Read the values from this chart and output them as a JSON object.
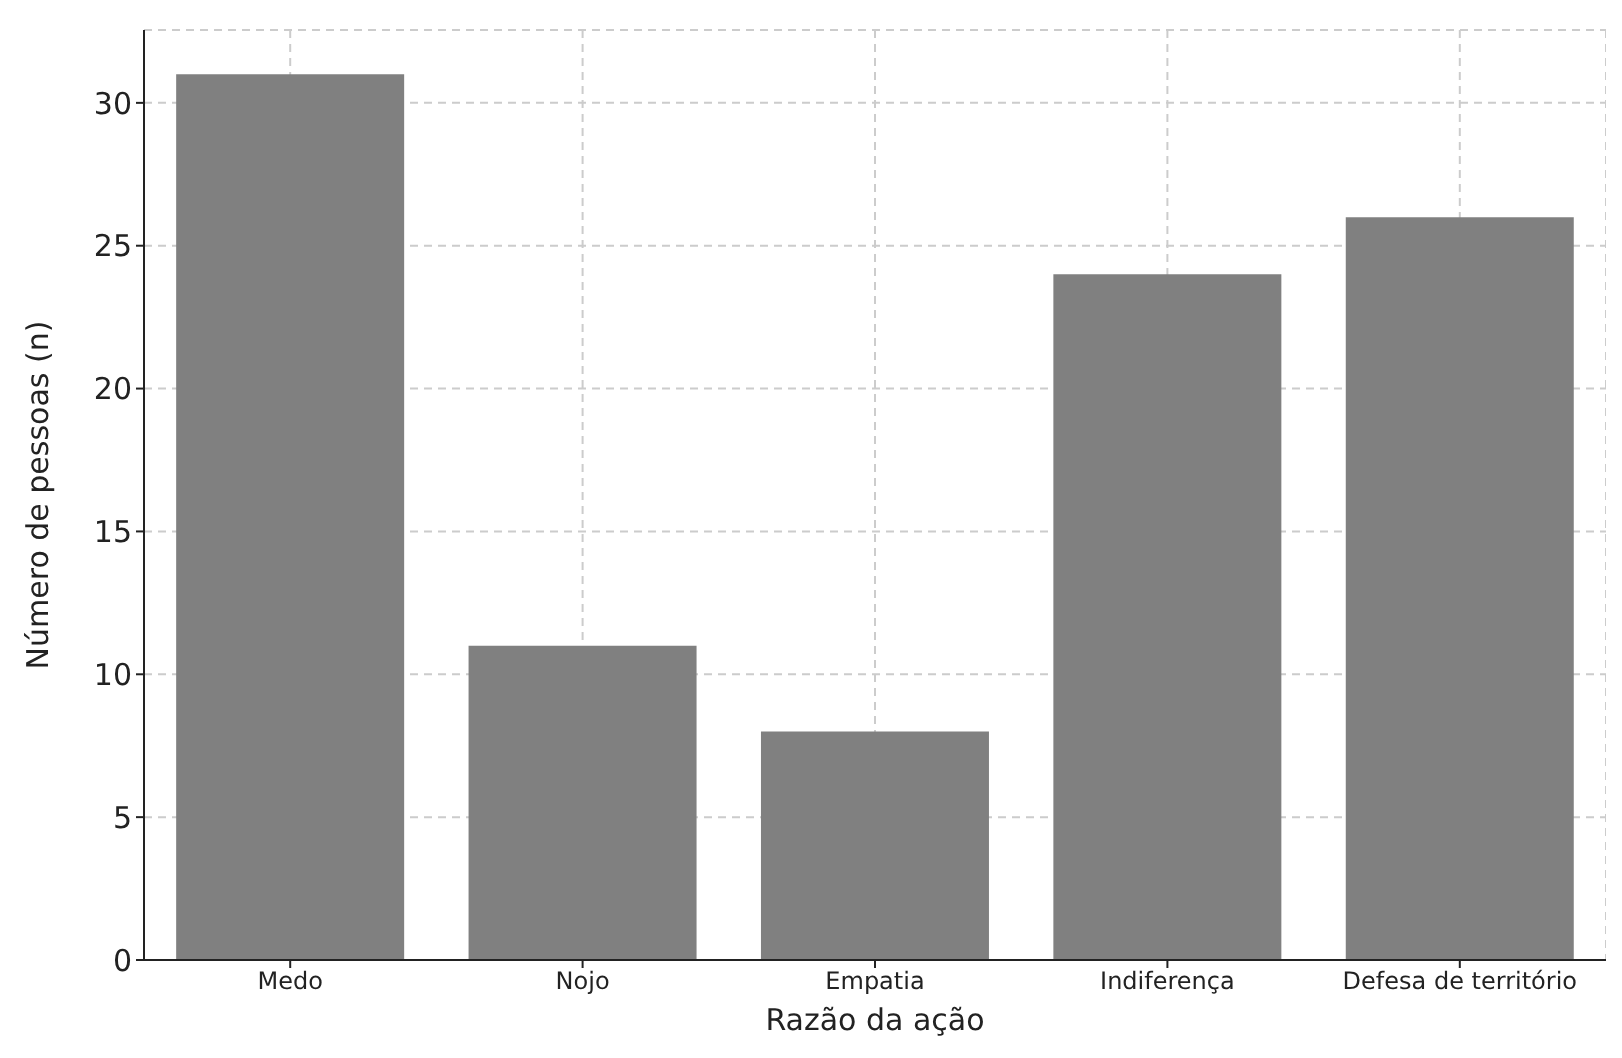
{
  "chart_data": {
    "type": "bar",
    "xlabel": "Razão da ação",
    "ylabel": "Número de pessoas (n)",
    "categories": [
      "Medo",
      "Nojo",
      "Empatia",
      "Indiferença",
      "Defesa de território"
    ],
    "values": [
      31,
      11,
      8,
      24,
      26
    ],
    "color": "#808080",
    "ylim": [
      0,
      32.55
    ],
    "yticks": [
      0,
      5,
      10,
      15,
      20,
      25,
      30
    ],
    "grid": true
  }
}
